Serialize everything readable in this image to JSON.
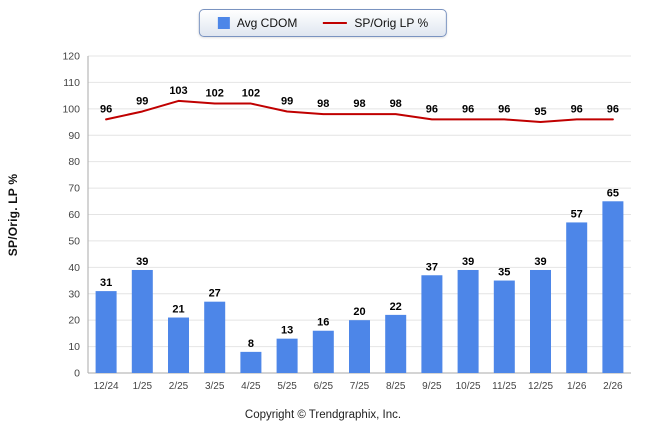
{
  "legend": {
    "series1": "Avg CDOM",
    "series2": "SP/Orig LP %"
  },
  "ylabel": "SP/Orig. LP %",
  "footer": "Copyright © Trendgraphix, Inc.",
  "colors": {
    "bar": "#4d86e8",
    "line": "#c00000",
    "grid": "#e4e4e4",
    "axis": "#aaaaaa",
    "value_label": "#000000",
    "tick_label": "#444444"
  },
  "chart_data": {
    "type": "bar",
    "subtype": "bar+line combo",
    "categories": [
      "12/24",
      "1/25",
      "2/25",
      "3/25",
      "4/25",
      "5/25",
      "6/25",
      "7/25",
      "8/25",
      "9/25",
      "10/25",
      "11/25",
      "12/25",
      "1/26",
      "2/26"
    ],
    "series": [
      {
        "name": "Avg CDOM",
        "type": "bar",
        "values": [
          31,
          39,
          21,
          27,
          8,
          13,
          16,
          20,
          22,
          37,
          39,
          35,
          39,
          57,
          65
        ]
      },
      {
        "name": "SP/Orig LP %",
        "type": "line",
        "values": [
          96,
          99,
          103,
          102,
          102,
          99,
          98,
          98,
          98,
          96,
          96,
          96,
          95,
          96,
          96
        ]
      }
    ],
    "title": "",
    "xlabel": "",
    "ylabel": "SP/Orig. LP %",
    "ylim": [
      0,
      120
    ],
    "ytick_step": 10,
    "grid": true,
    "legend_position": "top-center",
    "value_labels": true
  }
}
